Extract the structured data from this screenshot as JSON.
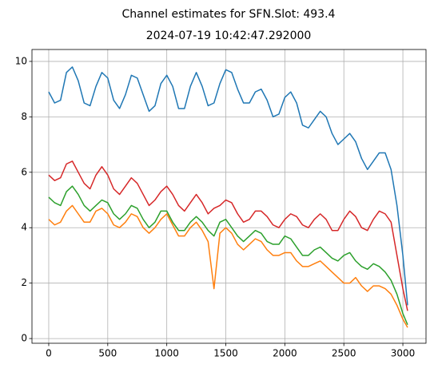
{
  "chart_data": {
    "type": "line",
    "title": "Channel estimates for SFN.Slot: 493.4",
    "subtitle": "2024-07-19 10:42:47.292000",
    "x": [
      0,
      50,
      100,
      150,
      200,
      250,
      300,
      350,
      400,
      450,
      500,
      550,
      600,
      650,
      700,
      750,
      800,
      850,
      900,
      950,
      1000,
      1050,
      1100,
      1150,
      1200,
      1250,
      1300,
      1350,
      1400,
      1450,
      1500,
      1550,
      1600,
      1650,
      1700,
      1750,
      1800,
      1850,
      1900,
      1950,
      2000,
      2050,
      2100,
      2150,
      2200,
      2250,
      2300,
      2350,
      2400,
      2450,
      2500,
      2550,
      2600,
      2650,
      2700,
      2750,
      2800,
      2850,
      2900,
      2950,
      3000,
      3040
    ],
    "series": [
      {
        "color": "#1f77b4",
        "values": [
          8.9,
          8.5,
          8.6,
          9.6,
          9.8,
          9.3,
          8.5,
          8.4,
          9.1,
          9.6,
          9.4,
          8.6,
          8.3,
          8.8,
          9.5,
          9.4,
          8.8,
          8.2,
          8.4,
          9.2,
          9.5,
          9.1,
          8.3,
          8.3,
          9.1,
          9.6,
          9.1,
          8.4,
          8.5,
          9.2,
          9.7,
          9.6,
          9.0,
          8.5,
          8.5,
          8.9,
          9.0,
          8.6,
          8.0,
          8.1,
          8.7,
          8.9,
          8.5,
          7.7,
          7.6,
          7.9,
          8.2,
          8.0,
          7.4,
          7.0,
          7.2,
          7.4,
          7.1,
          6.5,
          6.1,
          6.4,
          6.7,
          6.7,
          6.1,
          4.8,
          3.0,
          1.2
        ]
      },
      {
        "color": "#ff7f0e",
        "values": [
          4.3,
          4.1,
          4.2,
          4.6,
          4.8,
          4.5,
          4.2,
          4.2,
          4.6,
          4.7,
          4.5,
          4.1,
          4.0,
          4.2,
          4.5,
          4.4,
          4.0,
          3.8,
          4.0,
          4.3,
          4.5,
          4.1,
          3.7,
          3.7,
          4.0,
          4.2,
          3.9,
          3.5,
          1.8,
          3.8,
          4.0,
          3.8,
          3.4,
          3.2,
          3.4,
          3.6,
          3.5,
          3.2,
          3.0,
          3.0,
          3.1,
          3.1,
          2.8,
          2.6,
          2.6,
          2.7,
          2.8,
          2.6,
          2.4,
          2.2,
          2.0,
          2.0,
          2.2,
          1.9,
          1.7,
          1.9,
          1.9,
          1.8,
          1.6,
          1.2,
          0.7,
          0.4
        ]
      },
      {
        "color": "#2ca02c",
        "values": [
          5.1,
          4.9,
          4.8,
          5.3,
          5.5,
          5.2,
          4.8,
          4.6,
          4.8,
          5.0,
          4.9,
          4.5,
          4.3,
          4.5,
          4.8,
          4.7,
          4.3,
          4.0,
          4.2,
          4.6,
          4.6,
          4.2,
          3.9,
          3.9,
          4.2,
          4.4,
          4.2,
          3.9,
          3.7,
          4.2,
          4.3,
          4.0,
          3.7,
          3.5,
          3.7,
          3.9,
          3.8,
          3.5,
          3.4,
          3.4,
          3.7,
          3.6,
          3.3,
          3.0,
          3.0,
          3.2,
          3.3,
          3.1,
          2.9,
          2.8,
          3.0,
          3.1,
          2.8,
          2.6,
          2.5,
          2.7,
          2.6,
          2.4,
          2.1,
          1.6,
          0.9,
          0.5
        ]
      },
      {
        "color": "#d62728",
        "values": [
          5.9,
          5.7,
          5.8,
          6.3,
          6.4,
          6.0,
          5.6,
          5.4,
          5.9,
          6.2,
          5.9,
          5.4,
          5.2,
          5.5,
          5.8,
          5.6,
          5.2,
          4.8,
          5.0,
          5.3,
          5.5,
          5.2,
          4.8,
          4.6,
          4.9,
          5.2,
          4.9,
          4.5,
          4.7,
          4.8,
          5.0,
          4.9,
          4.5,
          4.2,
          4.3,
          4.6,
          4.6,
          4.4,
          4.1,
          4.0,
          4.3,
          4.5,
          4.4,
          4.1,
          4.0,
          4.3,
          4.5,
          4.3,
          3.9,
          3.9,
          4.3,
          4.6,
          4.4,
          4.0,
          3.9,
          4.3,
          4.6,
          4.5,
          4.2,
          3.0,
          1.8,
          1.0
        ]
      }
    ],
    "xlim": [
      -142,
      3196
    ],
    "xticks": [
      0,
      500,
      1000,
      1500,
      2000,
      2500,
      3000
    ],
    "ylim": [
      -0.17,
      10.43
    ],
    "yticks": [
      0,
      2,
      4,
      6,
      8,
      10
    ],
    "grid": true
  }
}
